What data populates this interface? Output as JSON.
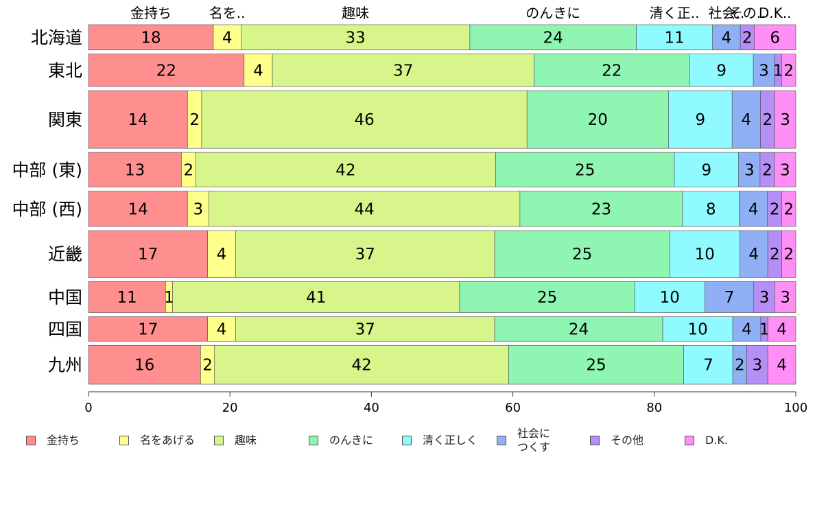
{
  "chart_data": {
    "type": "bar",
    "orientation": "horizontal",
    "stacked": true,
    "categories": [
      "北海道",
      "東北",
      "関東",
      "中部 (東)",
      "中部 (西)",
      "近畿",
      "中国",
      "四国",
      "九州"
    ],
    "series": [
      {
        "name": "金持ち",
        "top_label": "金持ち",
        "color": "#ff8f8f",
        "values": [
          18,
          22,
          14,
          13,
          14,
          17,
          11,
          17,
          16
        ]
      },
      {
        "name": "名をあげる",
        "top_label": "名を..",
        "color": "#ffff8c",
        "values": [
          4,
          4,
          2,
          2,
          3,
          4,
          1,
          4,
          2
        ]
      },
      {
        "name": "趣味",
        "top_label": "趣味",
        "color": "#d8f58c",
        "values": [
          33,
          37,
          46,
          42,
          44,
          37,
          41,
          37,
          42
        ]
      },
      {
        "name": "のんきに",
        "top_label": "のんきに",
        "color": "#8ff5b2",
        "values": [
          24,
          22,
          20,
          25,
          23,
          25,
          25,
          24,
          25
        ]
      },
      {
        "name": "清く正しく",
        "top_label": "清く正..",
        "color": "#8ffaff",
        "values": [
          11,
          9,
          9,
          9,
          8,
          10,
          10,
          10,
          7
        ]
      },
      {
        "name": "社会に\nつくす",
        "top_label": "社会..",
        "color": "#8fb0f5",
        "values": [
          4,
          3,
          4,
          3,
          4,
          4,
          7,
          4,
          2
        ]
      },
      {
        "name": "その他",
        "top_label": "その..",
        "color": "#b48ff5",
        "values": [
          2,
          1,
          2,
          2,
          2,
          2,
          3,
          1,
          3
        ]
      },
      {
        "name": "D.K.",
        "top_label": "D.K..",
        "color": "#ff8ff5",
        "values": [
          6,
          2,
          3,
          3,
          2,
          2,
          3,
          4,
          4
        ]
      }
    ],
    "row_weights": [
      35,
      45,
      80,
      48,
      49,
      65,
      43,
      34,
      54
    ],
    "xlim": [
      0,
      100
    ],
    "xticks": [
      "0",
      "20",
      "40",
      "60",
      "80",
      "100"
    ],
    "grid": false,
    "legend": "bottom"
  }
}
